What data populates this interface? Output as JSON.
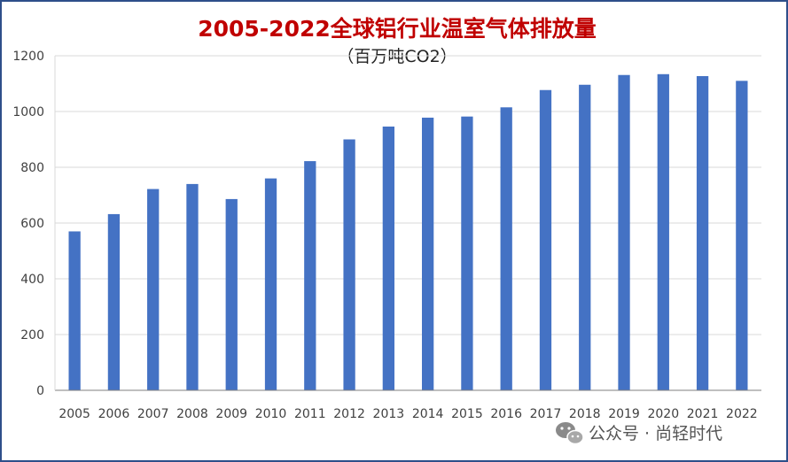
{
  "chart_data": {
    "type": "bar",
    "title": "2005-2022全球铝行业温室气体排放量",
    "subtitle": "（百万吨CO2）",
    "xlabel": "",
    "ylabel": "",
    "ylim": [
      0,
      1200
    ],
    "yticks": [
      "0",
      "200",
      "400",
      "600",
      "800",
      "1000",
      "1200"
    ],
    "grid": true,
    "legend": "none",
    "bar_color": "#4472c4",
    "categories": [
      "2005",
      "2006",
      "2007",
      "2008",
      "2009",
      "2010",
      "2011",
      "2012",
      "2013",
      "2014",
      "2015",
      "2016",
      "2017",
      "2018",
      "2019",
      "2020",
      "2021",
      "2022"
    ],
    "values": [
      570,
      632,
      722,
      740,
      686,
      760,
      822,
      900,
      946,
      978,
      982,
      1015,
      1077,
      1096,
      1131,
      1134,
      1127,
      1110
    ]
  },
  "watermark": {
    "icon": "wechat-icon",
    "text": "公众号 · 尚轻时代"
  }
}
